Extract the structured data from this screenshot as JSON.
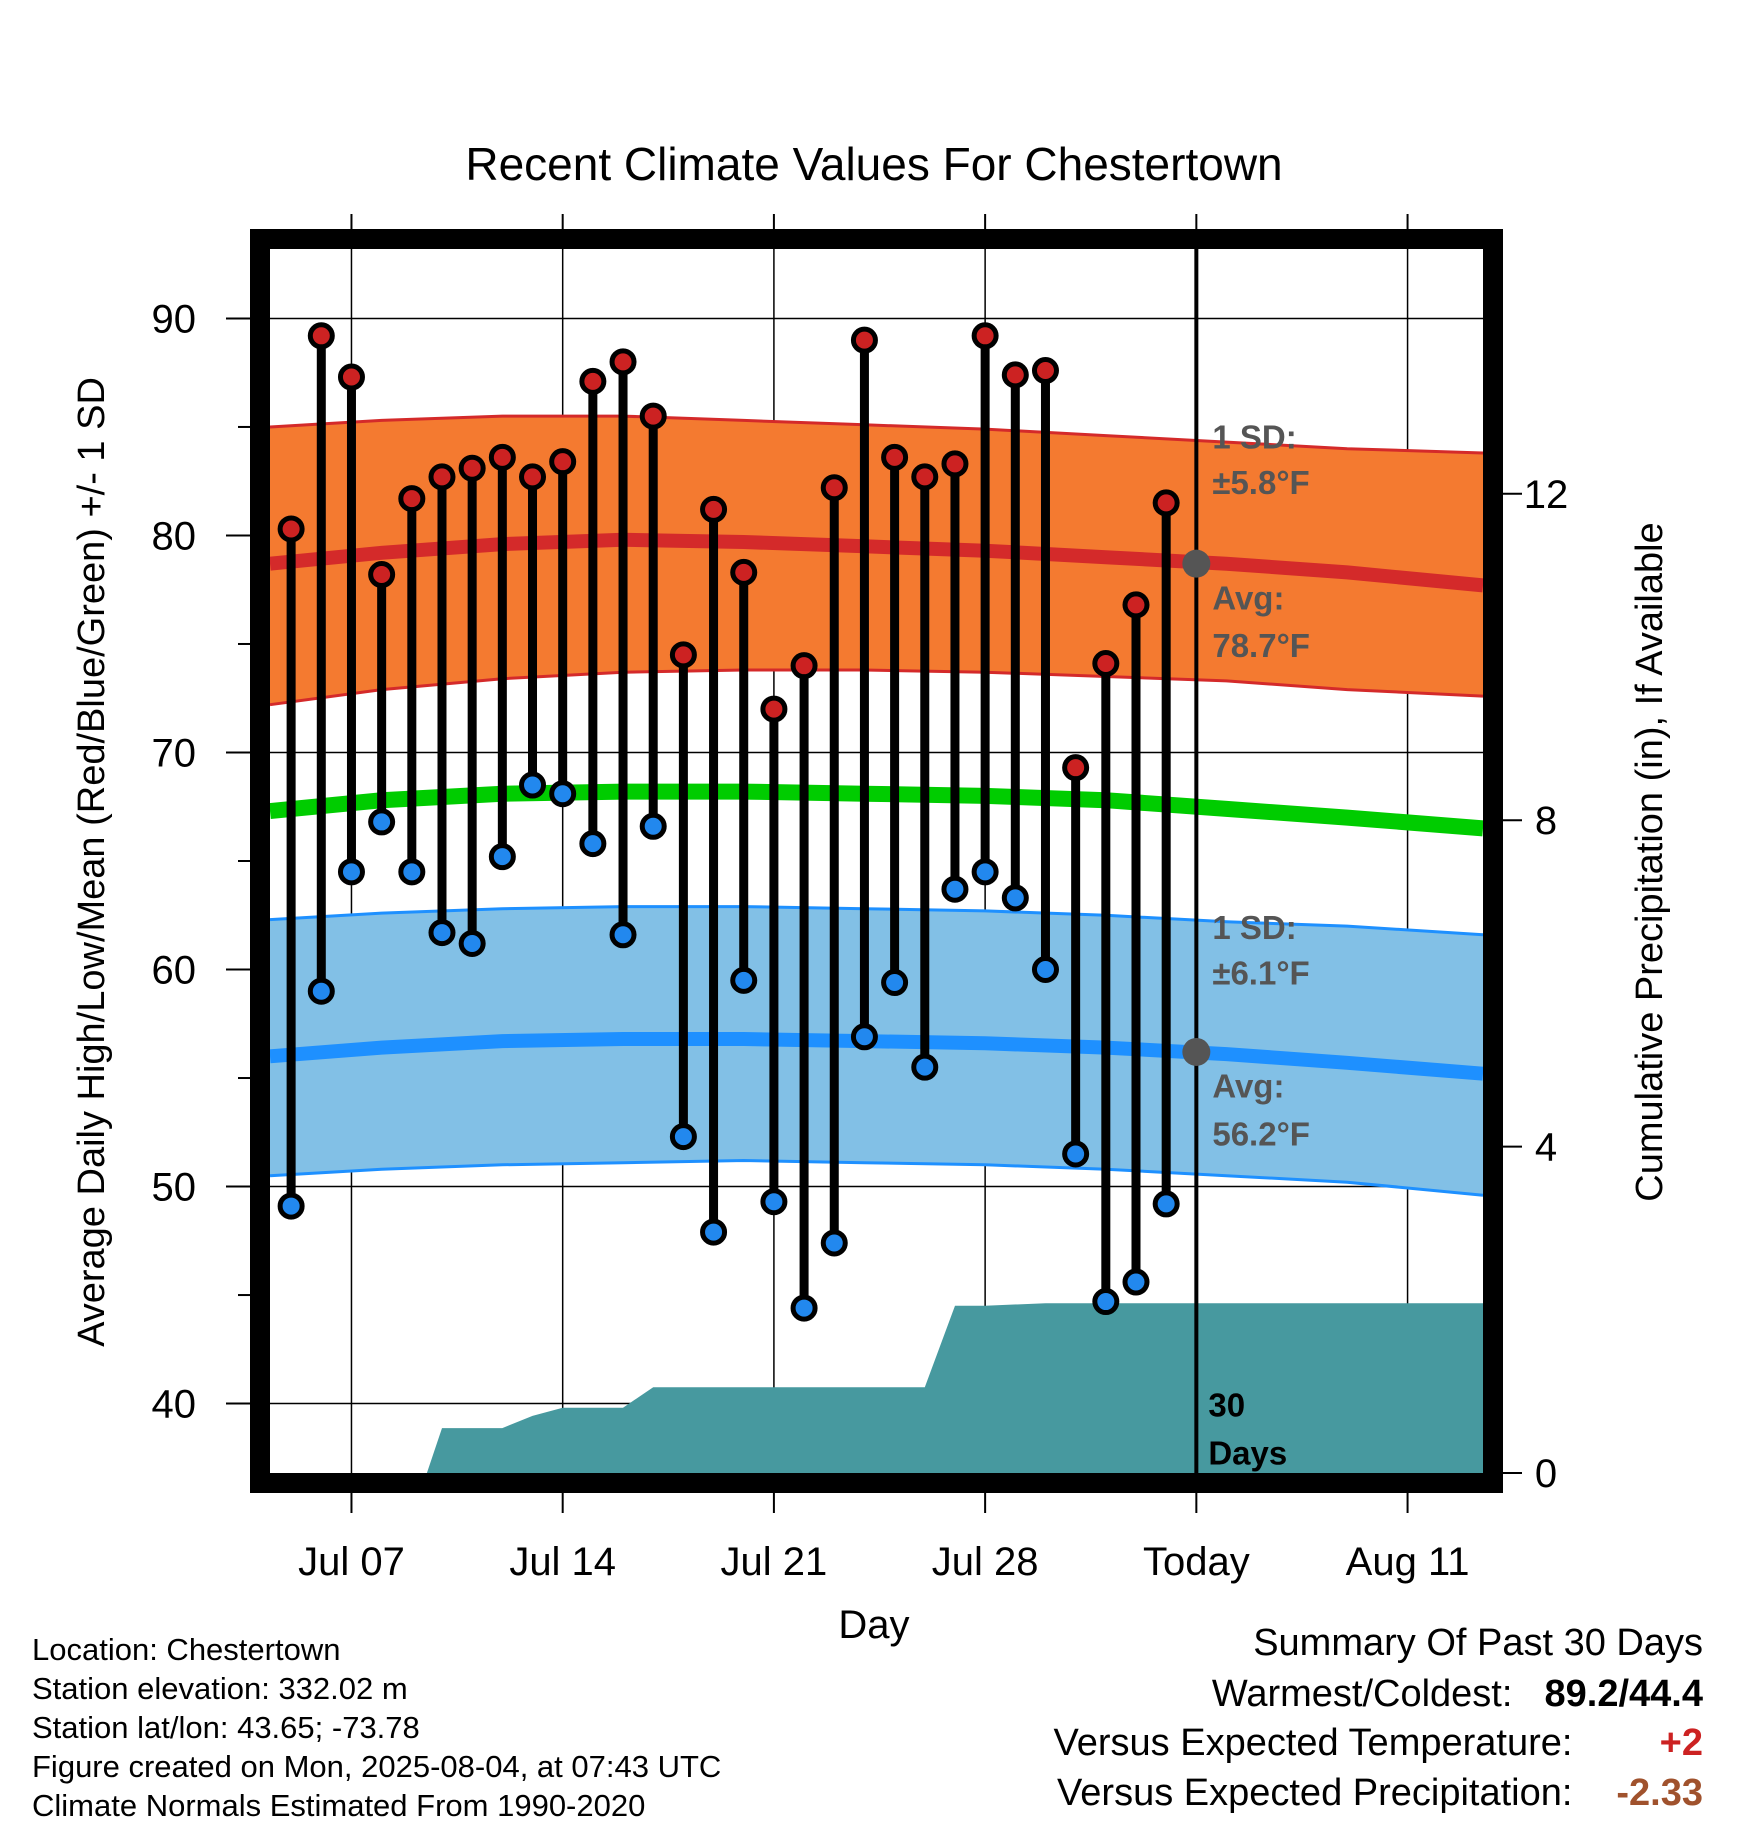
{
  "chart_data": {
    "type": "line",
    "title": "Recent Climate Values For Chestertown",
    "xlabel": "Day",
    "ylabel": "Average Daily High/Low/Mean (Red/Blue/Green) +/- 1 SD",
    "y2label": "Cumulative Precipitation (in), If Available",
    "ylim": [
      36.8,
      93.2
    ],
    "y2lim": [
      0,
      15
    ],
    "y_ticks": [
      40,
      50,
      60,
      70,
      80,
      90
    ],
    "y2_ticks": [
      0,
      4,
      8,
      12
    ],
    "x_tick_labels": [
      "Jul 07",
      "Jul 14",
      "Jul 21",
      "Jul 28",
      "Today",
      "Aug 11"
    ],
    "x_tick_days": [
      7,
      14,
      21,
      28,
      35,
      42
    ],
    "x_range_days": [
      4.3,
      44.5
    ],
    "grid": true,
    "today_day": 35,
    "days": [
      5,
      6,
      7,
      8,
      9,
      10,
      11,
      12,
      13,
      14,
      15,
      16,
      17,
      18,
      19,
      20,
      21,
      22,
      23,
      24,
      25,
      26,
      27,
      28,
      29,
      30,
      31,
      32,
      33,
      34
    ],
    "series": [
      {
        "name": "High",
        "color": "#cc2222",
        "values": [
          80.3,
          89.2,
          87.3,
          78.2,
          81.7,
          82.7,
          83.1,
          83.6,
          82.7,
          83.4,
          87.1,
          88.0,
          85.5,
          74.5,
          81.2,
          78.3,
          72.0,
          74.0,
          82.2,
          89.0,
          83.6,
          82.7,
          83.3,
          89.2,
          87.4,
          87.6,
          69.3,
          74.1,
          76.8,
          81.5
        ]
      },
      {
        "name": "Low",
        "color": "#2288ee",
        "values": [
          49.1,
          59.0,
          64.5,
          66.8,
          64.5,
          61.7,
          61.2,
          65.2,
          68.5,
          68.1,
          65.8,
          61.6,
          66.6,
          52.3,
          47.9,
          59.5,
          49.3,
          44.4,
          47.4,
          56.9,
          59.4,
          55.5,
          63.7,
          64.5,
          63.3,
          60.0,
          51.5,
          44.7,
          45.6,
          49.2
        ]
      }
    ],
    "normals": {
      "days": [
        4.3,
        8,
        12,
        16,
        20,
        24,
        28,
        32,
        36,
        40,
        44.5
      ],
      "high_avg": [
        78.7,
        79.2,
        79.6,
        79.8,
        79.7,
        79.5,
        79.3,
        79.0,
        78.7,
        78.3,
        77.7
      ],
      "high_sd_upper": [
        85.0,
        85.3,
        85.5,
        85.5,
        85.3,
        85.1,
        84.9,
        84.6,
        84.3,
        84.0,
        83.8
      ],
      "high_sd_lower": [
        72.2,
        72.9,
        73.4,
        73.7,
        73.8,
        73.8,
        73.7,
        73.5,
        73.3,
        72.9,
        72.6
      ],
      "mean": [
        67.3,
        67.8,
        68.1,
        68.2,
        68.2,
        68.1,
        68.0,
        67.8,
        67.4,
        67.0,
        66.5
      ],
      "low_avg": [
        56.0,
        56.4,
        56.7,
        56.8,
        56.8,
        56.7,
        56.6,
        56.4,
        56.1,
        55.7,
        55.2
      ],
      "low_sd_upper": [
        62.3,
        62.6,
        62.8,
        62.9,
        62.9,
        62.8,
        62.7,
        62.5,
        62.2,
        62.0,
        61.6
      ],
      "low_sd_lower": [
        50.5,
        50.8,
        51.0,
        51.1,
        51.2,
        51.1,
        51.0,
        50.8,
        50.5,
        50.2,
        49.6
      ]
    },
    "precip_cumulative": {
      "days": [
        4.3,
        9.5,
        10.0,
        11.0,
        12.0,
        13.0,
        14.0,
        15.0,
        16.0,
        17.0,
        20.0,
        22.0,
        24.0,
        26.0,
        27.0,
        28.0,
        30.0,
        44.5
      ],
      "values": [
        0,
        0,
        0.55,
        0.55,
        0.55,
        0.7,
        0.8,
        0.8,
        0.8,
        1.05,
        1.05,
        1.05,
        1.05,
        1.05,
        2.05,
        2.05,
        2.08,
        2.08
      ]
    },
    "annotations": {
      "high_sd_label": "1 SD:",
      "high_sd_value": "±5.8°F",
      "high_avg_label": "Avg:",
      "high_avg_value": "78.7°F",
      "low_sd_label": "1 SD:",
      "low_sd_value": "±6.1°F",
      "low_avg_label": "Avg:",
      "low_avg_value": "56.2°F",
      "precip_label_1": "30",
      "precip_label_2": "Days"
    },
    "colors": {
      "high_band": "#f47a30",
      "high_line": "#d42a2a",
      "mean_line": "#00cc00",
      "low_band": "#82c0e6",
      "low_line": "#1e90ff",
      "precip": "#47999f",
      "marker_high": "#cc2222",
      "marker_low": "#2288ee",
      "annotation_text": "#555555"
    }
  },
  "info": {
    "location": "Location: Chestertown",
    "elevation": "Station elevation: 332.02 m",
    "latlon": "Station lat/lon: 43.65; -73.78",
    "created": "Figure created on Mon, 2025-08-04, at 07:43 UTC",
    "normals": "Climate Normals Estimated From 1990-2020"
  },
  "summary": {
    "title": "Summary Of Past 30 Days",
    "warm_cold_label": "Warmest/Coldest:",
    "warm_cold_value": "89.2/44.4",
    "temp_label": "Versus Expected Temperature:",
    "temp_value": "+2",
    "temp_color": "#cc2222",
    "precip_label": "Versus Expected Precipitation:",
    "precip_value": "-2.33",
    "precip_color": "#a0522d"
  }
}
